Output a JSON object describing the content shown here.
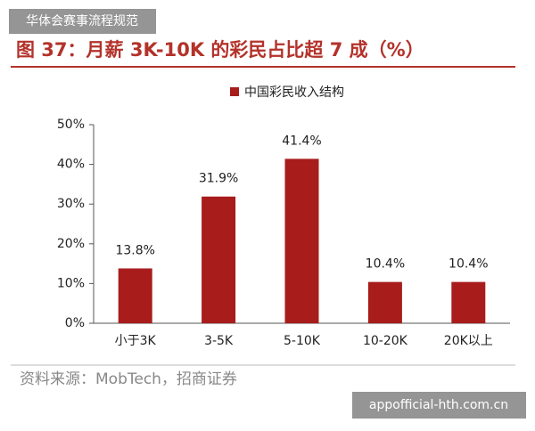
{
  "banner": "华体会赛事流程规范",
  "chart_data": {
    "type": "bar",
    "title": "图 37：月薪 3K-10K 的彩民占比超 7 成（%）",
    "categories": [
      "小于3K",
      "3-5K",
      "5-10K",
      "10-20K",
      "20K以上"
    ],
    "series": [
      {
        "name": "中国彩民收入结构",
        "color": "#a81c1c",
        "values": [
          13.8,
          31.9,
          41.4,
          10.4,
          10.4
        ],
        "value_labels": [
          "13.8%",
          "31.9%",
          "41.4%",
          "10.4%",
          "10.4%"
        ]
      }
    ],
    "ylim": [
      0,
      50
    ],
    "yticks": [
      {
        "value": 0,
        "label": "0%"
      },
      {
        "value": 10,
        "label": "10%"
      },
      {
        "value": 20,
        "label": "20%"
      },
      {
        "value": 30,
        "label": "30%"
      },
      {
        "value": 40,
        "label": "40%"
      },
      {
        "value": 50,
        "label": "50%"
      }
    ],
    "grid": false
  },
  "source": "资料来源：MobTech，招商证券",
  "watermark": "appofficial-hth.com.cn"
}
